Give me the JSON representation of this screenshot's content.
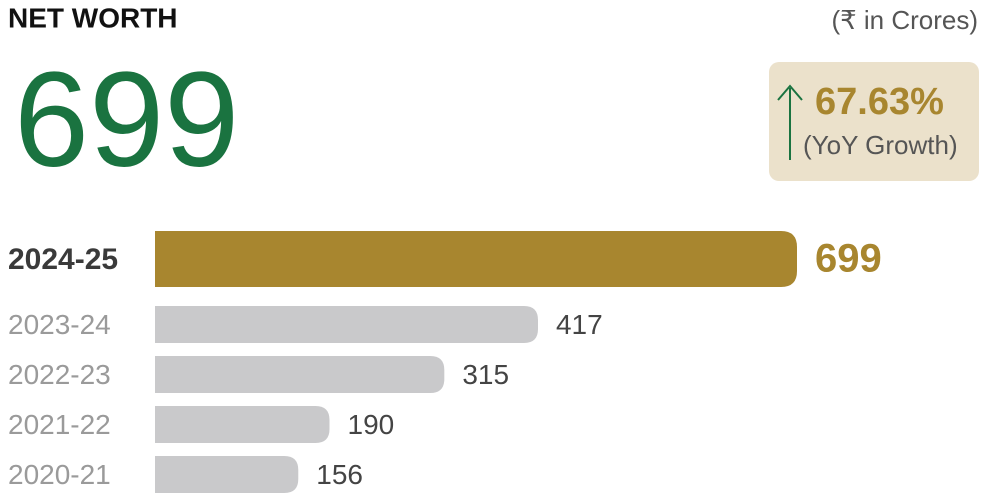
{
  "chart_data": {
    "type": "bar",
    "title": "NET WORTH",
    "unit": "(₹ in Crores)",
    "growth": "67.63%",
    "growth_note": "(YoY Growth)",
    "categories": [
      "2024-25",
      "2023-24",
      "2022-23",
      "2021-22",
      "2020-21"
    ],
    "values": [
      699,
      417,
      315,
      190,
      156
    ],
    "colors": [
      "#a8862f",
      "#c9c9cb",
      "#c9c9cb",
      "#c9c9cb",
      "#c9c9cb"
    ]
  }
}
